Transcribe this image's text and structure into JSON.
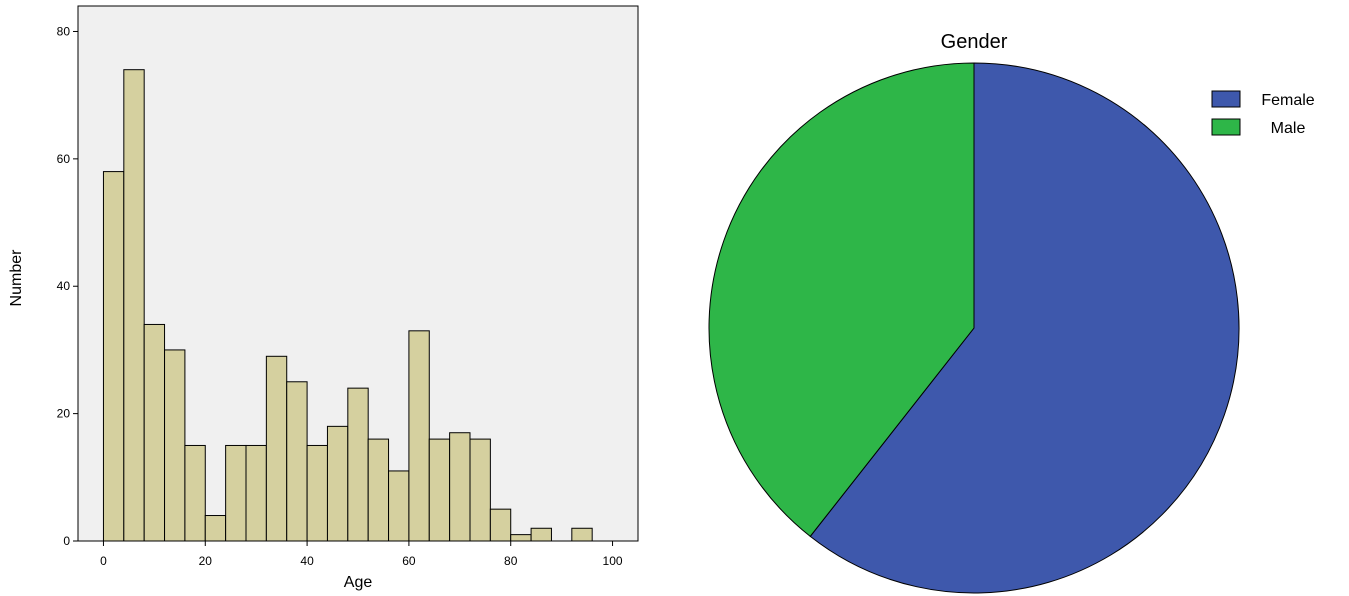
{
  "chart_data": [
    {
      "type": "bar",
      "subtype": "histogram",
      "xlabel": "Age",
      "ylabel": "Number",
      "xlim": [
        -5,
        105
      ],
      "ylim": [
        0,
        84
      ],
      "x_ticks": [
        0,
        20,
        40,
        60,
        80,
        100
      ],
      "y_ticks": [
        0,
        20,
        40,
        60,
        80
      ],
      "bin_width": 4,
      "bins": [
        {
          "start": 0,
          "count": 58
        },
        {
          "start": 4,
          "count": 74
        },
        {
          "start": 8,
          "count": 34
        },
        {
          "start": 12,
          "count": 30
        },
        {
          "start": 16,
          "count": 15
        },
        {
          "start": 20,
          "count": 4
        },
        {
          "start": 24,
          "count": 15
        },
        {
          "start": 28,
          "count": 15
        },
        {
          "start": 32,
          "count": 29
        },
        {
          "start": 36,
          "count": 25
        },
        {
          "start": 40,
          "count": 15
        },
        {
          "start": 44,
          "count": 18
        },
        {
          "start": 48,
          "count": 24
        },
        {
          "start": 52,
          "count": 16
        },
        {
          "start": 56,
          "count": 11
        },
        {
          "start": 60,
          "count": 33
        },
        {
          "start": 64,
          "count": 16
        },
        {
          "start": 68,
          "count": 17
        },
        {
          "start": 72,
          "count": 16
        },
        {
          "start": 76,
          "count": 5
        },
        {
          "start": 80,
          "count": 1
        },
        {
          "start": 84,
          "count": 2
        },
        {
          "start": 88,
          "count": 0
        },
        {
          "start": 92,
          "count": 2
        }
      ],
      "grid": false,
      "colors": {
        "bar_fill": "#d5d09f",
        "bar_edge": "#000000",
        "plot_background": "#f0f0f0"
      }
    },
    {
      "type": "pie",
      "title": "Gender",
      "legend_position": "top-right",
      "slices": [
        {
          "label": "Female",
          "percent": 60.6,
          "color": "#3e58ac"
        },
        {
          "label": "Male",
          "percent": 39.4,
          "color": "#2eb648"
        }
      ]
    }
  ]
}
